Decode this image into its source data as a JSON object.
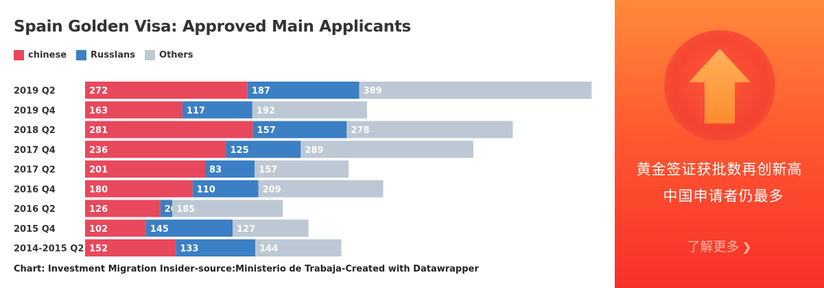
{
  "chart_data": {
    "type": "bar",
    "orientation": "horizontal",
    "stacked": true,
    "title": "Spain Golden Visa: Approved Main Applicants",
    "categories": [
      "2019 Q2",
      "2019 Q4",
      "2018 Q2",
      "2017 Q4",
      "2017 Q2",
      "2016 Q4",
      "2016 Q2",
      "2015 Q4",
      "2014-2015 Q2"
    ],
    "series": [
      {
        "name": "chinese",
        "color": "#e8485c",
        "values": [
          272,
          163,
          281,
          236,
          201,
          180,
          126,
          102,
          152
        ]
      },
      {
        "name": "Russlans",
        "color": "#3b7fc4",
        "values": [
          187,
          117,
          157,
          125,
          83,
          110,
          20,
          145,
          133
        ]
      },
      {
        "name": "Others",
        "color": "#bdc8d4",
        "values": [
          389,
          192,
          278,
          289,
          157,
          209,
          185,
          127,
          144
        ]
      }
    ],
    "legend_position": "top-left",
    "grid": false,
    "value_labels": true
  },
  "footer": "Chart:  Investment Migration Insider-source:Ministerio de Trabaja-Created with Datawrapper",
  "banner": {
    "line1": "黄金签证获批数再创新高",
    "line2": "中国申请者仍最多",
    "learn_more": "了解更多",
    "chevron_icon": "chevron-right-icon",
    "arrow_icon": "up-arrow-icon"
  }
}
